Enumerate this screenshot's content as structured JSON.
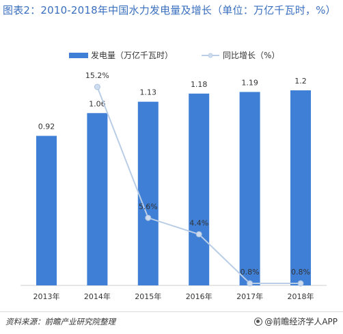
{
  "title": "图表2：2010-2018年中国水力发电量及增长（单位：万亿千瓦时，%）",
  "footer": {
    "source": "资料来源：前瞻产业研究院整理",
    "brand": "@前瞻经济学人APP",
    "brand_icon": "brand-logo-icon"
  },
  "colors": {
    "bar": "#3f7fd6",
    "line": "#b9cde6",
    "marker": "#cfdcee",
    "title": "#3a6fbf"
  },
  "chart_data": {
    "type": "bar",
    "categories": [
      "2013年",
      "2014年",
      "2015年",
      "2016年",
      "2017年",
      "2018年"
    ],
    "series": [
      {
        "name": "发电量（万亿千瓦时）",
        "kind": "bar",
        "values": [
          0.92,
          1.06,
          1.13,
          1.18,
          1.19,
          1.2
        ],
        "labels": [
          "0.92",
          "1.06",
          "1.13",
          "1.18",
          "1.19",
          "1.2"
        ]
      },
      {
        "name": "同比增长（%）",
        "kind": "line",
        "values": [
          null,
          15.2,
          5.6,
          4.4,
          0.8,
          0.8
        ],
        "labels": [
          "",
          "15.2%",
          "5.6%",
          "4.4%",
          "0.8%",
          "0.8%"
        ]
      }
    ],
    "legend_position": "top",
    "grid": false,
    "ylim_bar": [
      0,
      1.5
    ],
    "ylim_line": [
      0,
      20
    ]
  }
}
